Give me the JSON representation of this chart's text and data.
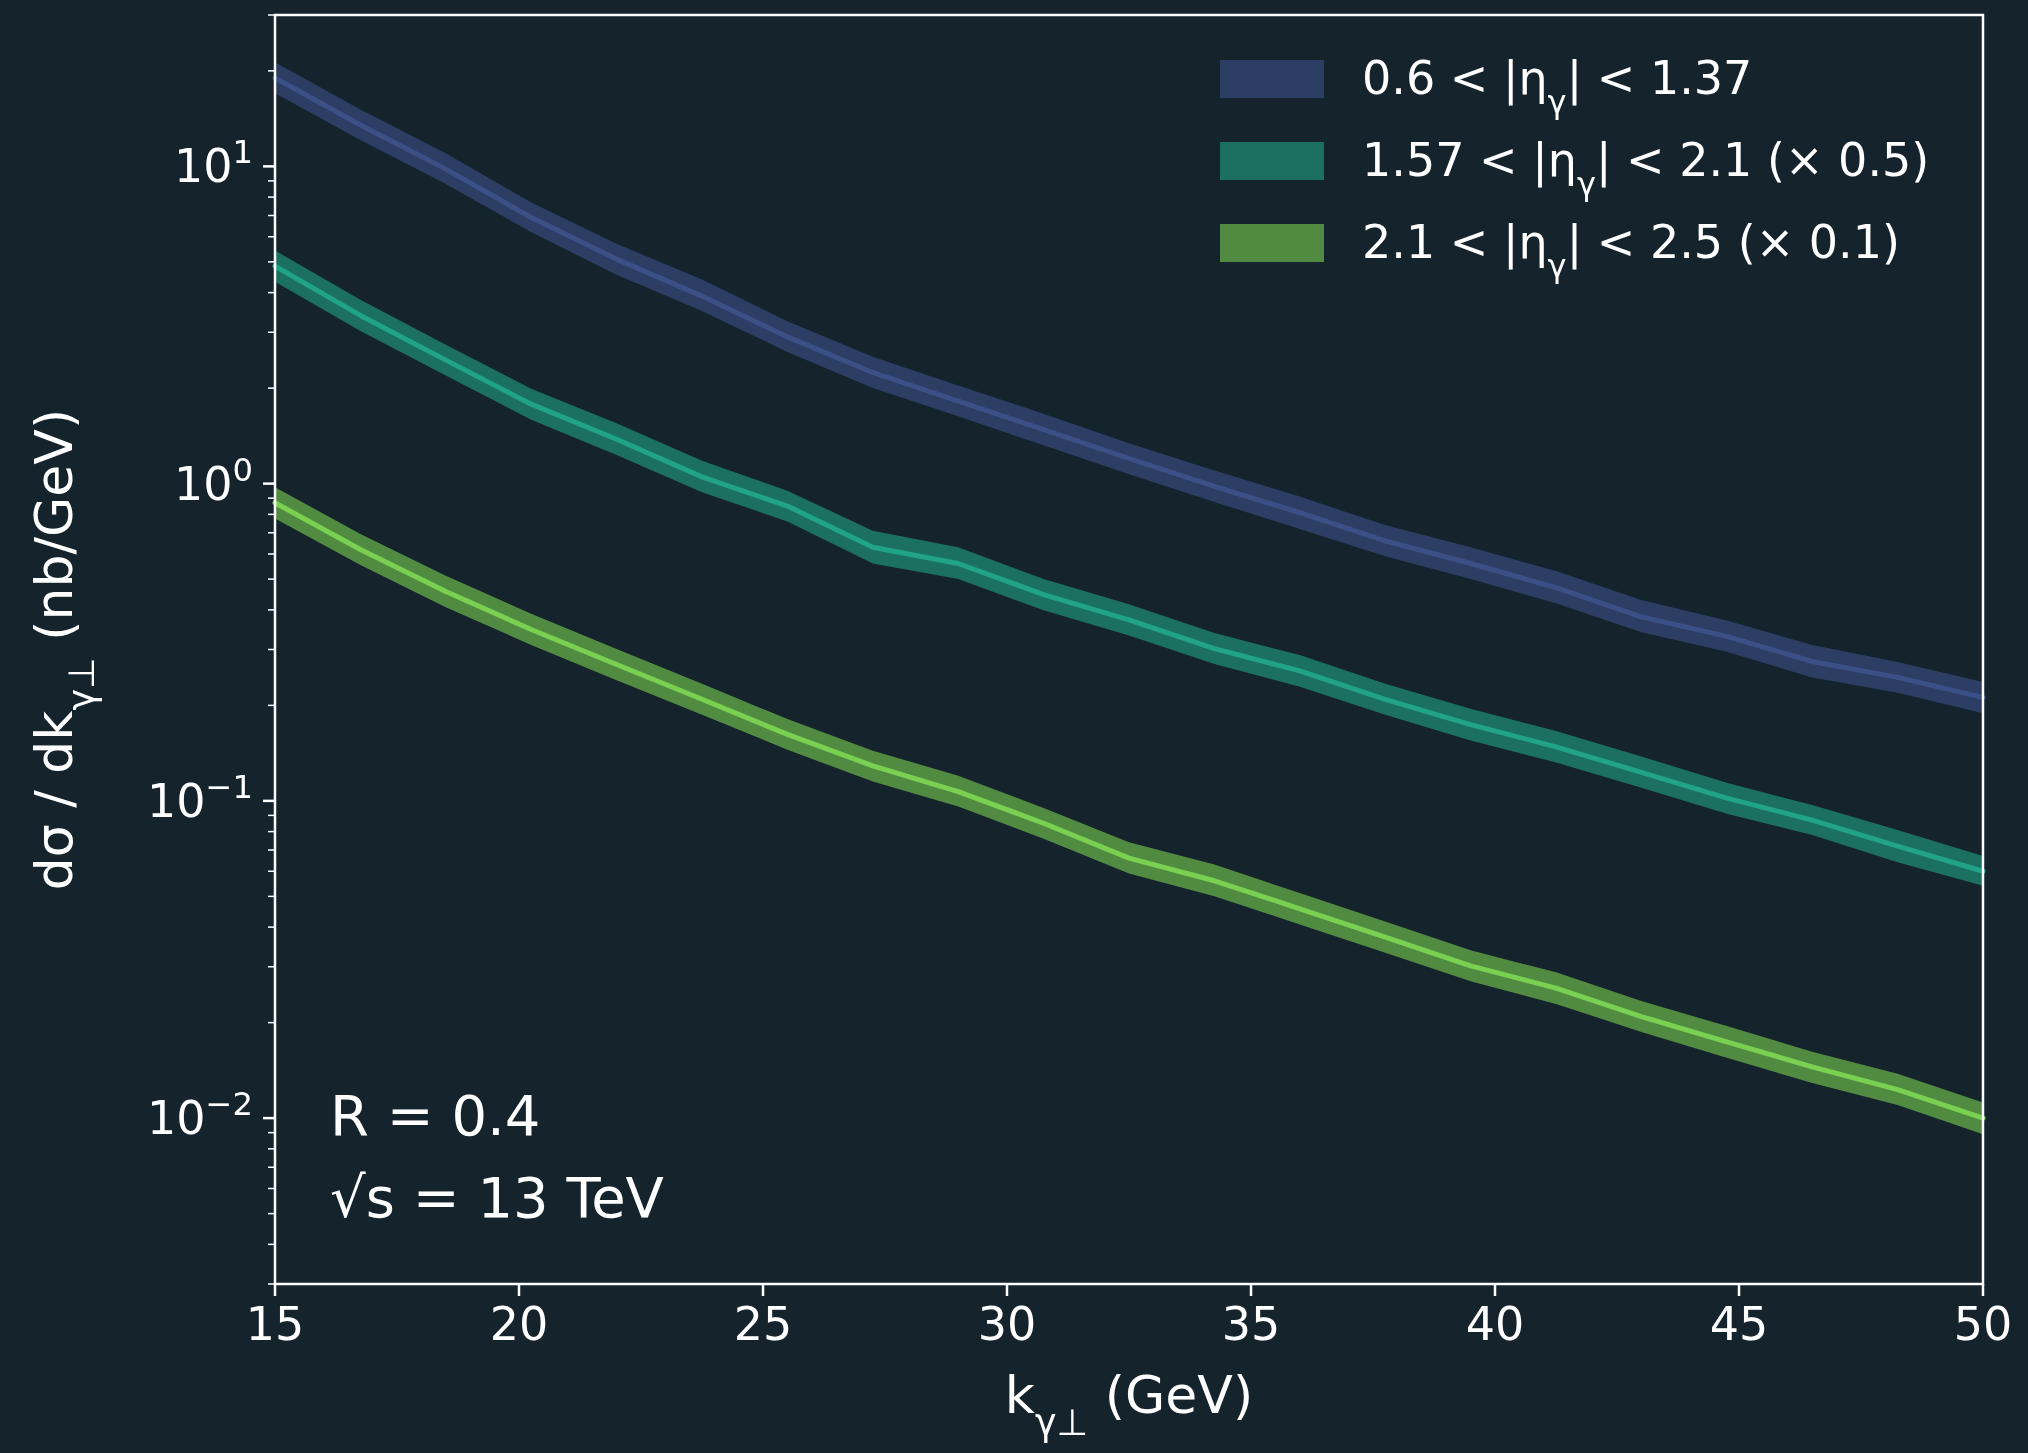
{
  "chart_data": {
    "type": "line",
    "xlabel": "k$_{γ⊥}$ (GeV)",
    "ylabel": "dσ / dk$_{γ⊥}$  (nb/GeV)",
    "log": "y",
    "legend": "top right",
    "grid": false,
    "marker": "none",
    "line_style": "solid",
    "xlim": [
      15,
      50
    ],
    "xticks": [
      15,
      20,
      25,
      30,
      35,
      40,
      45,
      50
    ],
    "ylim": [
      0.003,
      30
    ],
    "yticks": [
      {
        "value": 0.003,
        "label": null
      },
      {
        "value": 0.004,
        "label": null
      },
      {
        "value": 0.005,
        "label": null
      },
      {
        "value": 0.006,
        "label": null
      },
      {
        "value": 0.007,
        "label": null
      },
      {
        "value": 0.008,
        "label": null
      },
      {
        "value": 0.009,
        "label": null
      },
      {
        "value": 0.01,
        "label": "10$^{−2}$"
      },
      {
        "value": 0.02,
        "label": null
      },
      {
        "value": 0.03,
        "label": null
      },
      {
        "value": 0.04,
        "label": null
      },
      {
        "value": 0.05,
        "label": null
      },
      {
        "value": 0.06,
        "label": null
      },
      {
        "value": 0.07,
        "label": null
      },
      {
        "value": 0.08,
        "label": null
      },
      {
        "value": 0.09,
        "label": null
      },
      {
        "value": 0.1,
        "label": "10$^{−1}$"
      },
      {
        "value": 0.2,
        "label": null
      },
      {
        "value": 0.3,
        "label": null
      },
      {
        "value": 0.4,
        "label": null
      },
      {
        "value": 0.5,
        "label": null
      },
      {
        "value": 0.6,
        "label": null
      },
      {
        "value": 0.7,
        "label": null
      },
      {
        "value": 0.8,
        "label": null
      },
      {
        "value": 0.9,
        "label": null
      },
      {
        "value": 1,
        "label": "10$^{0}$"
      },
      {
        "value": 2,
        "label": null
      },
      {
        "value": 3,
        "label": null
      },
      {
        "value": 4,
        "label": null
      },
      {
        "value": 5,
        "label": null
      },
      {
        "value": 6,
        "label": null
      },
      {
        "value": 7,
        "label": null
      },
      {
        "value": 8,
        "label": null
      },
      {
        "value": 9,
        "label": null
      },
      {
        "value": 10,
        "label": "10$^{1}$"
      },
      {
        "value": 20,
        "label": null
      },
      {
        "value": 30,
        "label": null
      }
    ],
    "x": [
      15,
      16.75,
      18.5,
      20.25,
      22,
      23.75,
      25.5,
      27.25,
      29,
      30.75,
      32.5,
      34.25,
      36,
      37.75,
      39.5,
      41.25,
      43,
      44.75,
      46.5,
      48.25,
      50
    ],
    "series": [
      {
        "name": "0.6 < |η$_{γ}$| < 1.37",
        "color": "#3c5088",
        "values": [
          19.0,
          13.5,
          9.8,
          6.9,
          5.1,
          3.9,
          2.9,
          2.24,
          1.82,
          1.48,
          1.2,
          0.98,
          0.81,
          0.66,
          0.56,
          0.47,
          0.38,
          0.33,
          0.275,
          0.245,
          0.212
        ],
        "upper": [
          21.3,
          15.1,
          11.0,
          7.7,
          5.7,
          4.4,
          3.25,
          2.51,
          2.04,
          1.66,
          1.34,
          1.1,
          0.91,
          0.74,
          0.63,
          0.53,
          0.43,
          0.37,
          0.31,
          0.274,
          0.237
        ],
        "lower": [
          17.0,
          12.1,
          8.8,
          6.2,
          4.55,
          3.5,
          2.6,
          2.0,
          1.63,
          1.32,
          1.07,
          0.875,
          0.72,
          0.59,
          0.5,
          0.42,
          0.34,
          0.295,
          0.245,
          0.219,
          0.189
        ]
      },
      {
        "name": "1.57 < |η$_{γ}$| < 2.1 (× 0.5)",
        "color": "#20a386",
        "values": [
          4.85,
          3.39,
          2.45,
          1.78,
          1.38,
          1.05,
          0.85,
          0.63,
          0.56,
          0.447,
          0.372,
          0.302,
          0.257,
          0.209,
          0.174,
          0.148,
          0.123,
          0.102,
          0.087,
          0.072,
          0.06
        ],
        "upper": [
          5.43,
          3.8,
          2.74,
          1.99,
          1.55,
          1.18,
          0.95,
          0.71,
          0.63,
          0.5,
          0.417,
          0.338,
          0.288,
          0.234,
          0.195,
          0.166,
          0.138,
          0.114,
          0.097,
          0.081,
          0.067
        ],
        "lower": [
          4.33,
          3.03,
          2.19,
          1.59,
          1.23,
          0.94,
          0.76,
          0.56,
          0.5,
          0.399,
          0.332,
          0.27,
          0.229,
          0.187,
          0.155,
          0.132,
          0.11,
          0.091,
          0.078,
          0.064,
          0.054
        ]
      },
      {
        "name": "2.1 < |η$_{γ}$| < 2.5 (× 0.1)",
        "color": "#7ad151",
        "values": [
          0.87,
          0.62,
          0.457,
          0.347,
          0.269,
          0.209,
          0.162,
          0.129,
          0.107,
          0.085,
          0.066,
          0.056,
          0.0457,
          0.0372,
          0.0302,
          0.0257,
          0.0209,
          0.0174,
          0.0145,
          0.0123,
          0.01
        ],
        "upper": [
          0.974,
          0.694,
          0.512,
          0.389,
          0.301,
          0.234,
          0.181,
          0.144,
          0.12,
          0.095,
          0.074,
          0.063,
          0.0512,
          0.0417,
          0.0338,
          0.0288,
          0.0234,
          0.0195,
          0.0162,
          0.0138,
          0.0112
        ],
        "lower": [
          0.777,
          0.554,
          0.408,
          0.31,
          0.24,
          0.187,
          0.145,
          0.115,
          0.096,
          0.076,
          0.059,
          0.05,
          0.0408,
          0.0332,
          0.027,
          0.0229,
          0.0187,
          0.0155,
          0.0129,
          0.011,
          0.0089
        ]
      }
    ],
    "annotations": [
      "R = 0.4",
      "√s = 13 TeV"
    ]
  }
}
